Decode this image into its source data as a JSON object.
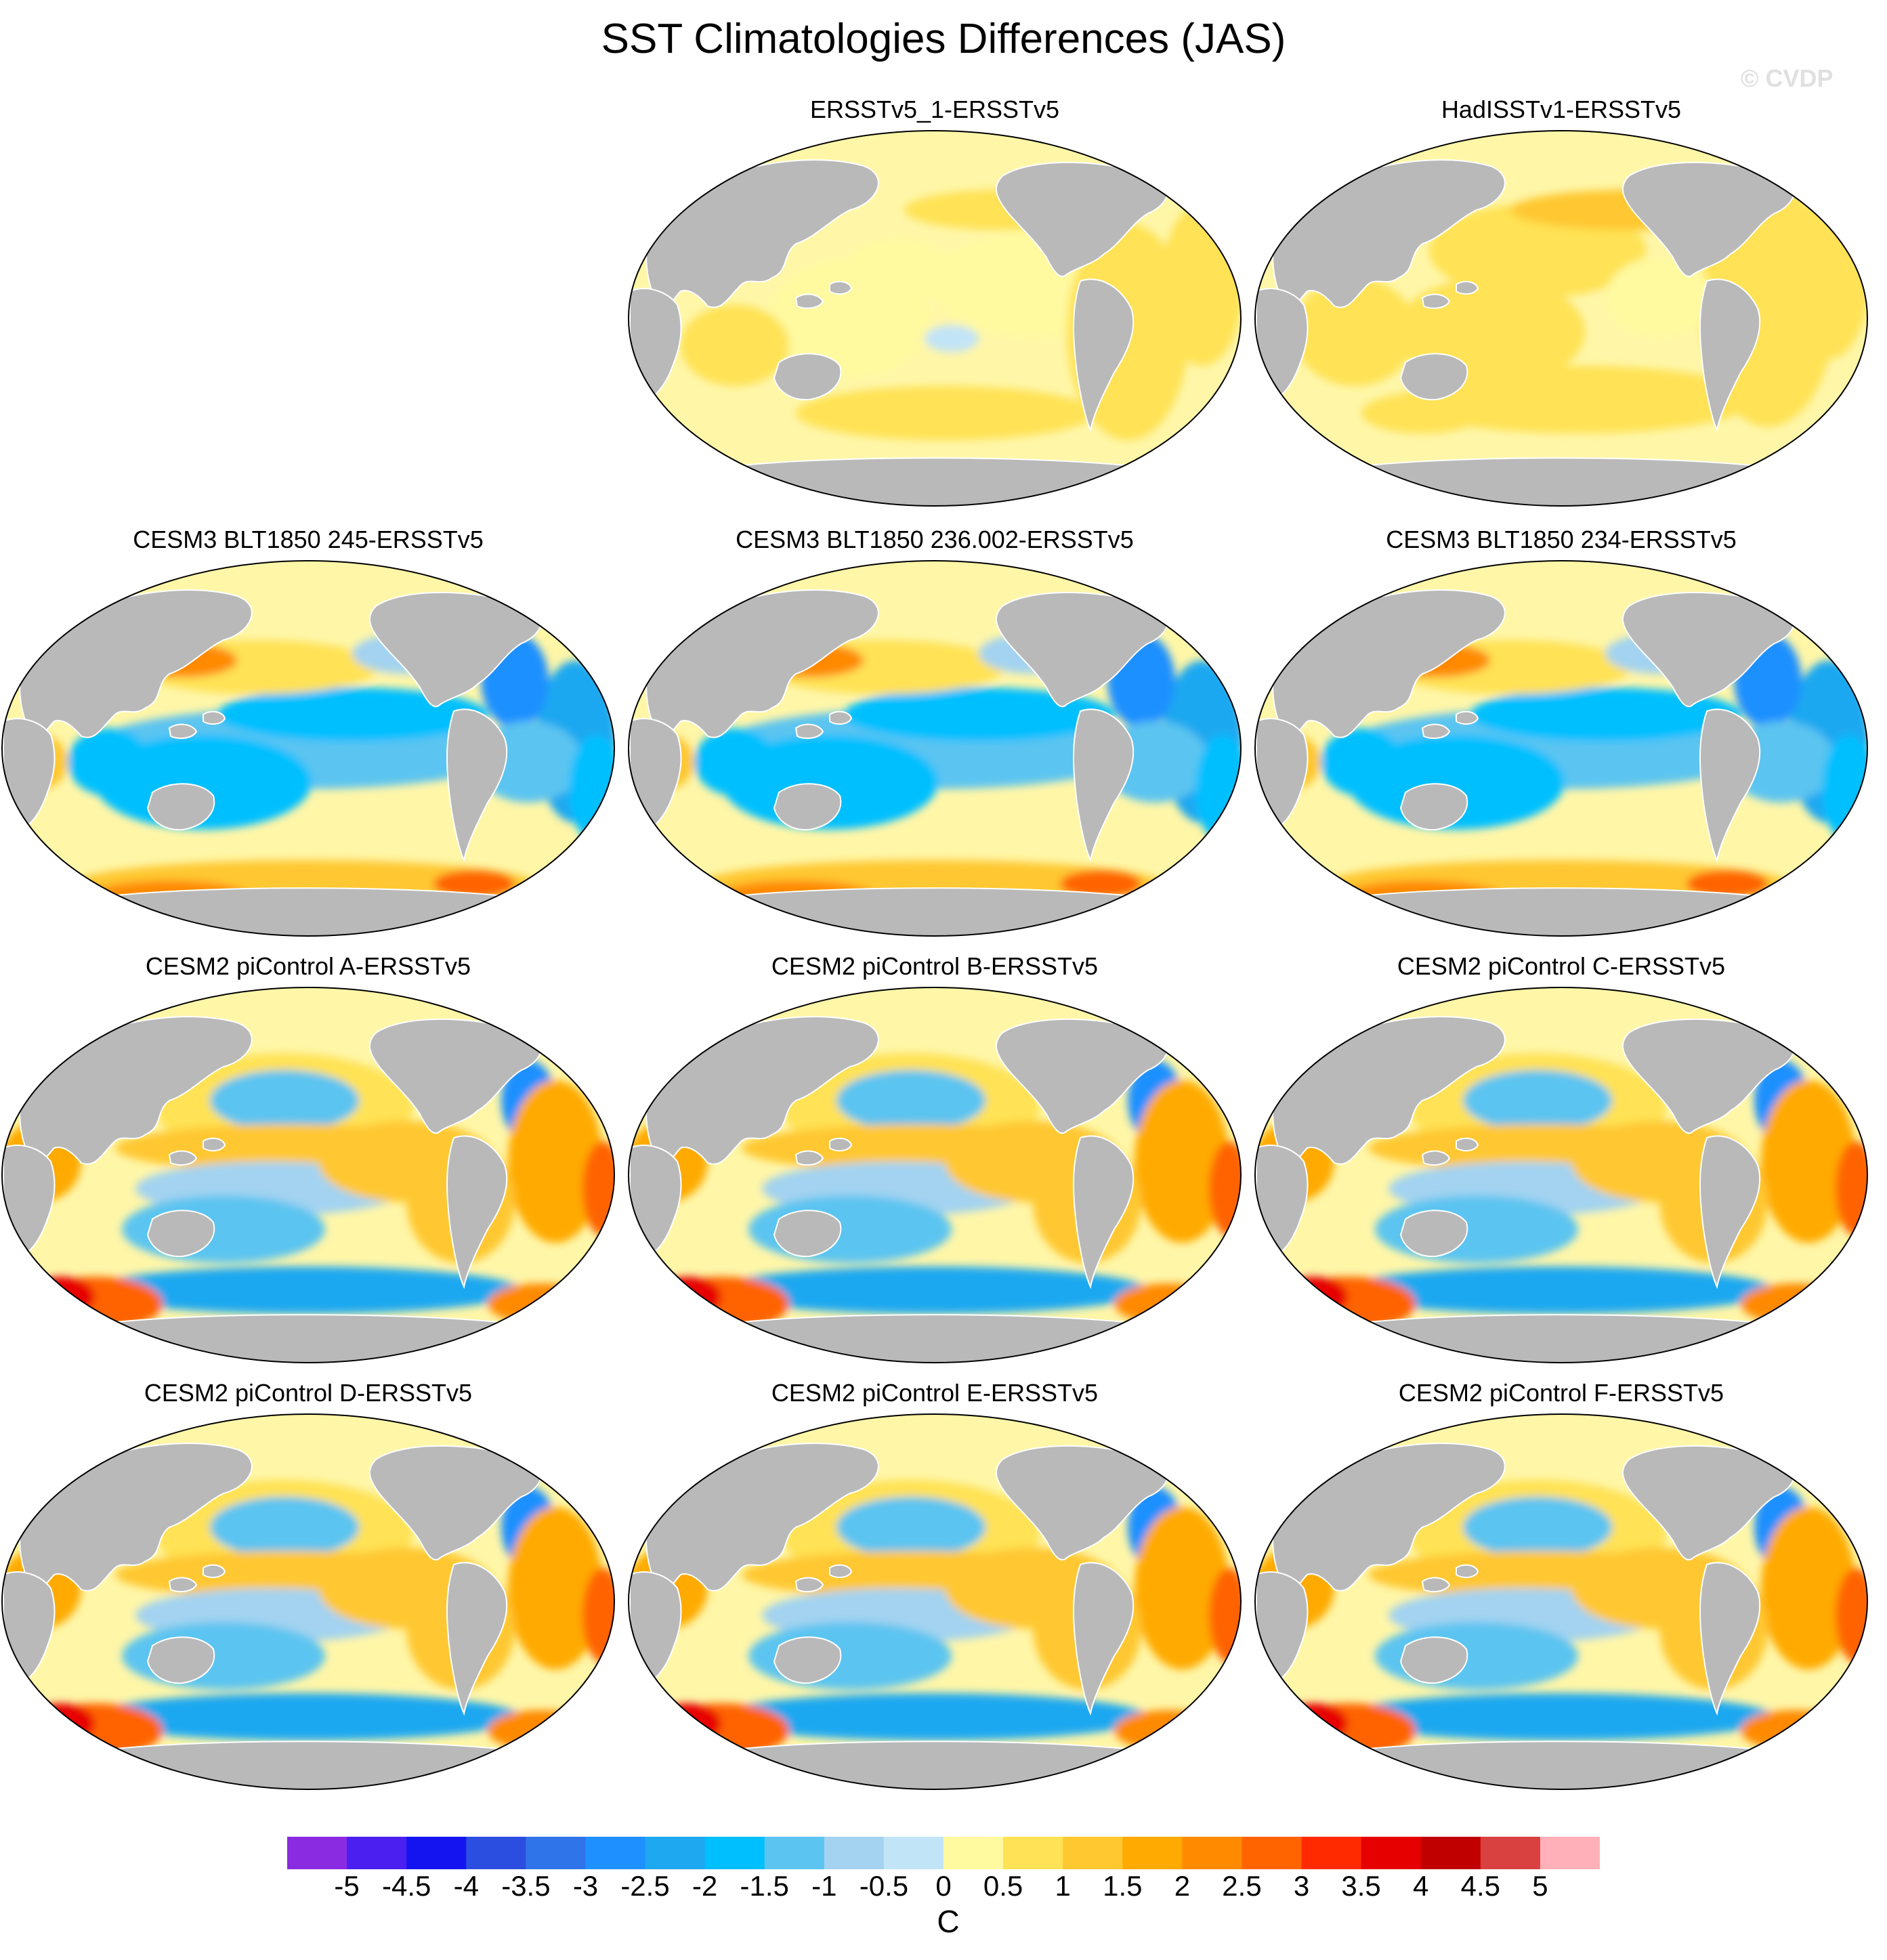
{
  "header": {
    "title": "SST Climatologies Differences (JAS)",
    "watermark": "© CVDP"
  },
  "panels": [
    {
      "title": "ERSSTv5_1-ERSSTv5",
      "pattern": "obs1"
    },
    {
      "title": "HadISSTv1-ERSSTv5",
      "pattern": "obs2"
    },
    {
      "title": "CESM3 BLT1850 245-ERSSTv5",
      "pattern": "cesm3"
    },
    {
      "title": "CESM3 BLT1850 236.002-ERSSTv5",
      "pattern": "cesm3"
    },
    {
      "title": "CESM3 BLT1850 234-ERSSTv5",
      "pattern": "cesm3"
    },
    {
      "title": "CESM2 piControl A-ERSSTv5",
      "pattern": "cesm2"
    },
    {
      "title": "CESM2 piControl B-ERSSTv5",
      "pattern": "cesm2"
    },
    {
      "title": "CESM2 piControl C-ERSSTv5",
      "pattern": "cesm2"
    },
    {
      "title": "CESM2 piControl D-ERSSTv5",
      "pattern": "cesm2"
    },
    {
      "title": "CESM2 piControl E-ERSSTv5",
      "pattern": "cesm2"
    },
    {
      "title": "CESM2 piControl F-ERSSTv5",
      "pattern": "cesm2"
    }
  ],
  "colorbar": {
    "labels": [
      "-5",
      "-4.5",
      "-4",
      "-3.5",
      "-3",
      "-2.5",
      "-2",
      "-1.5",
      "-1",
      "-0.5",
      "0",
      "0.5",
      "1",
      "1.5",
      "2",
      "2.5",
      "3",
      "3.5",
      "4",
      "4.5",
      "5"
    ],
    "colors": [
      "#8a2be2",
      "#4a1ff0",
      "#1414f0",
      "#2c4ee0",
      "#2f74e8",
      "#1e90ff",
      "#1ea8f0",
      "#00bfff",
      "#5cc4f0",
      "#a3d3f0",
      "#c2e4f7",
      "#fff9a0",
      "#ffe255",
      "#ffc830",
      "#ffaa00",
      "#ff8a00",
      "#ff6400",
      "#ff2a00",
      "#e60000",
      "#c00000",
      "#d94040",
      "#ffb0b8"
    ],
    "unit": "C"
  },
  "map_colors": {
    "ocean_background": "#fff6a8",
    "land": "#b9b9b9",
    "frame": "#000000"
  }
}
